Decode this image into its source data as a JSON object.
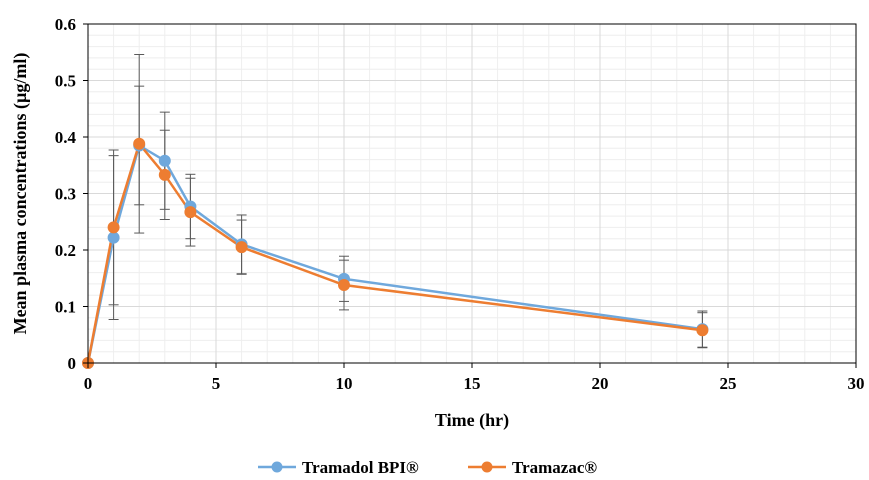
{
  "chart_data": {
    "type": "line",
    "xlabel": "Time (hr)",
    "ylabel": "Mean plasma concentrations (µg/ml)",
    "xlim": [
      0,
      30
    ],
    "ylim": [
      0,
      0.6
    ],
    "xticks": [
      0,
      5,
      10,
      15,
      20,
      25,
      30
    ],
    "yticks": [
      0,
      0.1,
      0.2,
      0.3,
      0.4,
      0.5,
      0.6
    ],
    "xtick_labels": [
      "0",
      "5",
      "10",
      "15",
      "20",
      "25",
      "30"
    ],
    "ytick_labels": [
      "0",
      "0.1",
      "0.2",
      "0.3",
      "0.4",
      "0.5",
      "0.6"
    ],
    "grid": true,
    "legend_position": "bottom",
    "x": [
      0,
      1,
      2,
      3,
      4,
      6,
      10,
      24
    ],
    "series": [
      {
        "name": "Tramadol BPI®",
        "color": "#6fa8dc",
        "values": [
          0,
          0.222,
          0.385,
          0.358,
          0.277,
          0.21,
          0.149,
          0.06
        ],
        "error": [
          0,
          0.145,
          0.105,
          0.086,
          0.057,
          0.052,
          0.04,
          0.032
        ]
      },
      {
        "name": "Tramazac®",
        "color": "#ed7d31",
        "values": [
          0,
          0.24,
          0.388,
          0.333,
          0.267,
          0.205,
          0.138,
          0.058
        ],
        "error": [
          0,
          0.137,
          0.158,
          0.079,
          0.06,
          0.048,
          0.044,
          0.031
        ]
      }
    ]
  }
}
